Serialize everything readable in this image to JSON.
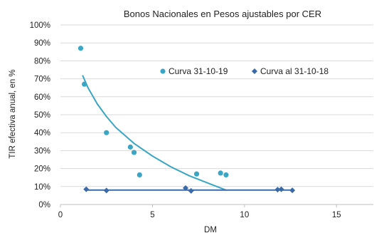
{
  "chart_data": {
    "type": "scatter",
    "title": "Bonos Nacionales en Pesos ajustables por CER",
    "xlabel": "DM",
    "ylabel": "TIR efectiva anual, en %",
    "xlim": [
      0,
      17
    ],
    "ylim": [
      0,
      100
    ],
    "x_ticks": [
      0,
      5,
      10,
      15
    ],
    "y_ticks": [
      0,
      10,
      20,
      30,
      40,
      50,
      60,
      70,
      80,
      90,
      100
    ],
    "x_tick_labels": [
      "0",
      "5",
      "10",
      "15"
    ],
    "y_tick_labels": [
      "0%",
      "10%",
      "20%",
      "30%",
      "40%",
      "50%",
      "60%",
      "70%",
      "80%",
      "90%",
      "100%"
    ],
    "grid": "horizontal",
    "legend_position": "inside-top-right",
    "series": [
      {
        "name": "Curva 31-10-19",
        "marker": "circle",
        "color": "#3aa6c4",
        "points": [
          {
            "x": 1.1,
            "y": 87
          },
          {
            "x": 1.3,
            "y": 67
          },
          {
            "x": 2.5,
            "y": 40
          },
          {
            "x": 3.8,
            "y": 32
          },
          {
            "x": 4.0,
            "y": 29
          },
          {
            "x": 4.3,
            "y": 16.5
          },
          {
            "x": 7.4,
            "y": 17
          },
          {
            "x": 8.7,
            "y": 17.5
          },
          {
            "x": 9.0,
            "y": 16.5
          }
        ],
        "trend": {
          "type": "curve",
          "x": [
            1.2,
            1.5,
            2,
            2.5,
            3,
            4,
            5,
            6,
            7,
            8,
            9
          ],
          "y": [
            72,
            65,
            56,
            49,
            43,
            34,
            27,
            21,
            16,
            12,
            8
          ]
        }
      },
      {
        "name": "Curva al 31-10-18",
        "marker": "diamond",
        "color": "#3b6aa8",
        "points": [
          {
            "x": 1.4,
            "y": 8.5
          },
          {
            "x": 2.5,
            "y": 7.8
          },
          {
            "x": 6.8,
            "y": 9.2
          },
          {
            "x": 7.1,
            "y": 7.6
          },
          {
            "x": 11.8,
            "y": 8.3
          },
          {
            "x": 12.0,
            "y": 8.5
          },
          {
            "x": 12.6,
            "y": 7.9
          }
        ],
        "trend": {
          "type": "line",
          "x": [
            1.4,
            12.6
          ],
          "y": [
            8,
            8
          ]
        }
      }
    ]
  }
}
